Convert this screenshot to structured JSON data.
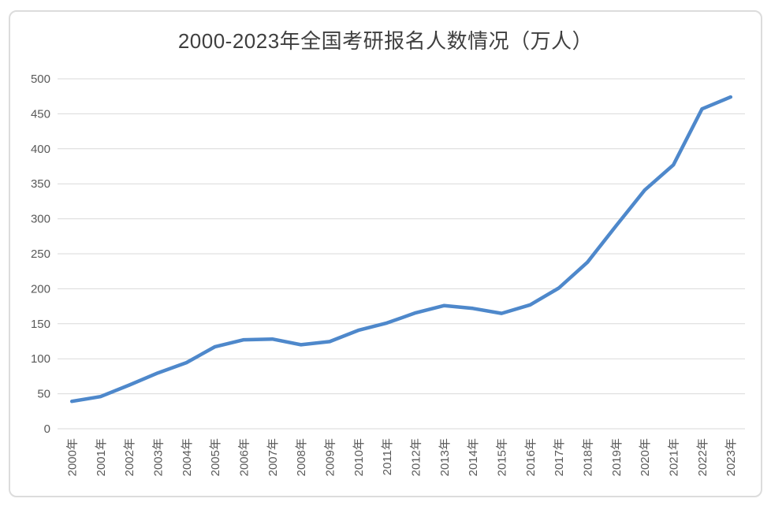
{
  "page": {
    "title": "2000-2023年全国考研报名人数情况（万人）"
  },
  "colors": {
    "line": "#4e88cb",
    "gridline": "#d9d9d9",
    "tick_text": "#595959",
    "title_text": "#3f3f3f",
    "frame_border": "#dcdcdc",
    "background": "#ffffff"
  },
  "chart_data": {
    "type": "line",
    "title": "2000-2023年全国考研报名人数情况（万人）",
    "categories": [
      "2000年",
      "2001年",
      "2002年",
      "2003年",
      "2004年",
      "2005年",
      "2006年",
      "2007年",
      "2008年",
      "2009年",
      "2010年",
      "2011年",
      "2012年",
      "2013年",
      "2014年",
      "2015年",
      "2016年",
      "2017年",
      "2018年",
      "2019年",
      "2020年",
      "2021年",
      "2022年",
      "2023年"
    ],
    "values": [
      39.2,
      46,
      62.4,
      79.7,
      94.5,
      117.2,
      127.1,
      128.2,
      120,
      124.6,
      140.6,
      151.1,
      165.6,
      176,
      172,
      164.9,
      177,
      201,
      238,
      290,
      341,
      377,
      457,
      474
    ],
    "xlabel": "",
    "ylabel": "",
    "ylim": [
      0,
      500
    ],
    "y_ticks": [
      0,
      50,
      100,
      150,
      200,
      250,
      300,
      350,
      400,
      450,
      500
    ],
    "grid": true,
    "legend_position": "none"
  }
}
